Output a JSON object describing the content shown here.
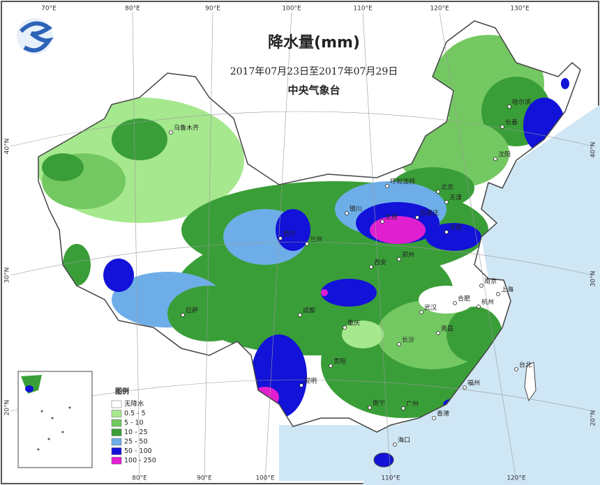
{
  "header": {
    "title": "降水量(mm)",
    "period": "2017年07月23日至2017年07月29日",
    "issuer": "中央气象台"
  },
  "legend": {
    "title": "图例",
    "items": [
      {
        "label": "无降水",
        "color": "#ffffff"
      },
      {
        "label": "0.5 - 5",
        "color": "#a6e88e"
      },
      {
        "label": "5 - 10",
        "color": "#74c862"
      },
      {
        "label": "10 - 25",
        "color": "#3a9e38"
      },
      {
        "label": "25 - 50",
        "color": "#6eaee8"
      },
      {
        "label": "50 - 100",
        "color": "#1212d8"
      },
      {
        "label": "100 - 250",
        "color": "#e020d0"
      }
    ]
  },
  "graticule": {
    "top": [
      "70°E",
      "80°E",
      "90°E",
      "100°E",
      "110°E",
      "120°E",
      "130°E"
    ],
    "bottom": [
      "80°E",
      "90°E",
      "100°E",
      "110°E",
      "120°E"
    ],
    "left": [
      "40°N",
      "30°N",
      "20°N"
    ],
    "right": [
      "40°N",
      "30°N",
      "20°N"
    ]
  },
  "cities": [
    "乌鲁木齐",
    "呼和浩特",
    "北京",
    "天津",
    "石家庄",
    "太原",
    "银川",
    "兰州",
    "西宁",
    "拉萨",
    "成都",
    "重庆",
    "贵阳",
    "昆明",
    "南宁",
    "海口",
    "广州",
    "香港",
    "福州",
    "台北",
    "杭州",
    "上海",
    "南京",
    "合肥",
    "武汉",
    "长沙",
    "南昌",
    "郑州",
    "济南",
    "西安",
    "沈阳",
    "长春",
    "哈尔滨"
  ]
}
